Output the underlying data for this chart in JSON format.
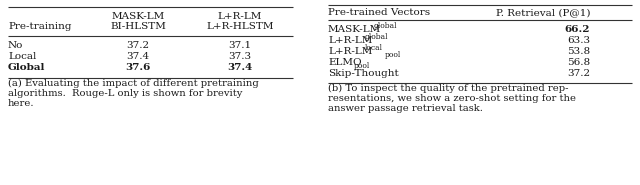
{
  "table_a": {
    "col1_header": [
      "MASK-LM",
      "BI-HLSTM"
    ],
    "col2_header": [
      "L+R-LM",
      "L+R-HLSTM"
    ],
    "row_header": "Pre-training",
    "rows": [
      [
        "No",
        "37.2",
        "37.1"
      ],
      [
        "Local",
        "37.4",
        "37.3"
      ],
      [
        "Global",
        "37.6",
        "37.4"
      ]
    ],
    "bold_rows": [
      2
    ],
    "caption": "(a) Evaluating the impact of different pretraining\nalgorithms.  Rouge-L only is shown for brevity\nhere."
  },
  "table_b": {
    "col1_header": "Pre-trained Vectors",
    "col2_header": "P. Retrieval (P@1)",
    "rows": [
      [
        "MASK-LM",
        "global",
        "",
        "66.2",
        true
      ],
      [
        "L+R-LM",
        "global",
        "",
        "63.3",
        false
      ],
      [
        "L+R-LM",
        "local",
        "pool",
        "53.8",
        false
      ],
      [
        "ELMO",
        "",
        "pool",
        "56.8",
        false
      ],
      [
        "Skip-Thought",
        "",
        "",
        "37.2",
        false
      ]
    ],
    "caption": "(b) To inspect the quality of the pretrained rep-\nresentations, we show a zero-shot setting for the\nanswer passage retrieval task."
  },
  "background_color": "#ffffff",
  "text_color": "#1a1a1a",
  "line_color": "#333333",
  "fontsize": 7.5,
  "caption_fontsize": 7.2,
  "small_fontsize": 5.5
}
